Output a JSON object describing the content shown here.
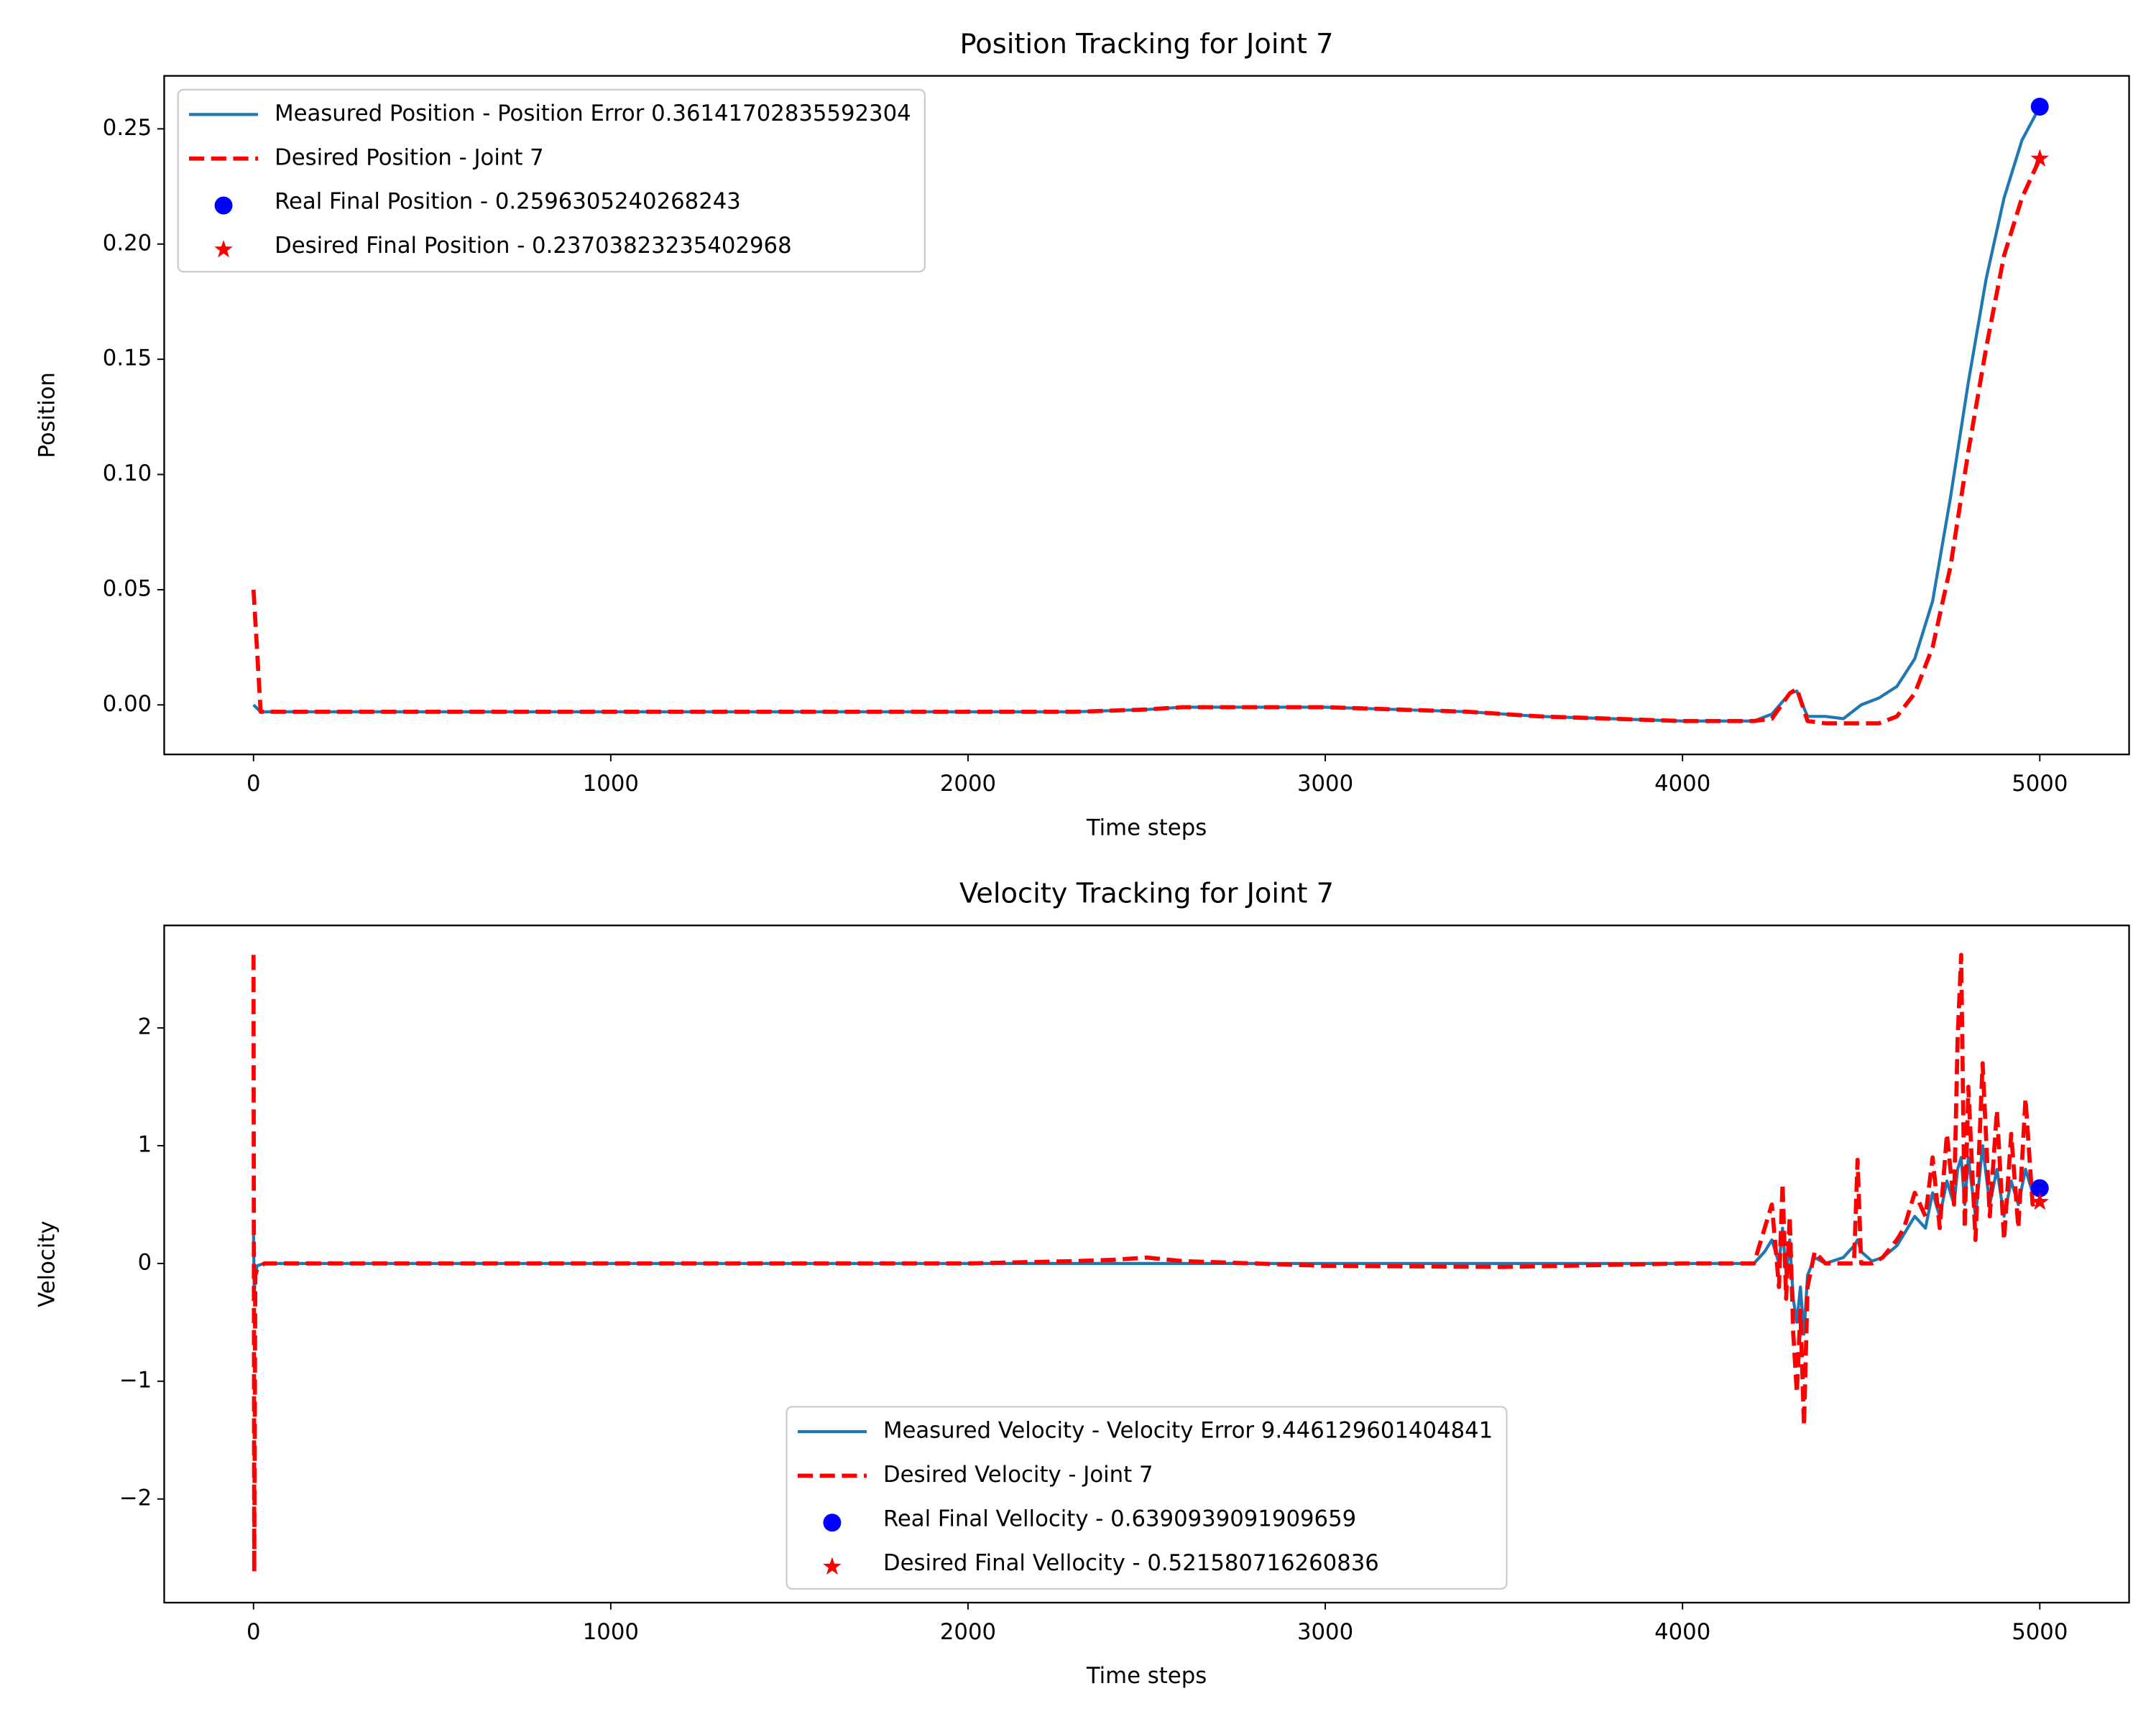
{
  "chart_data": [
    {
      "type": "line",
      "title": "Position Tracking for Joint 7",
      "xlabel": "Time steps",
      "ylabel": "Position",
      "x": [
        0,
        20,
        100,
        500,
        1000,
        1500,
        2000,
        2300,
        2500,
        2600,
        2800,
        3000,
        3200,
        3400,
        3600,
        3800,
        4000,
        4200,
        4250,
        4300,
        4320,
        4350,
        4400,
        4450,
        4500,
        4550,
        4600,
        4650,
        4700,
        4750,
        4800,
        4850,
        4900,
        4950,
        5000
      ],
      "series": [
        {
          "name": "Measured Position - Position Error 0.36141702835592304",
          "color": "#1f77b4",
          "style": "solid",
          "values": [
            0.0,
            -0.003,
            -0.003,
            -0.003,
            -0.003,
            -0.003,
            -0.003,
            -0.003,
            -0.002,
            -0.001,
            -0.001,
            -0.001,
            -0.002,
            -0.003,
            -0.005,
            -0.006,
            -0.007,
            -0.007,
            -0.004,
            0.005,
            0.006,
            -0.005,
            -0.005,
            -0.006,
            0.0,
            0.003,
            0.008,
            0.02,
            0.045,
            0.09,
            0.14,
            0.185,
            0.22,
            0.245,
            0.2596
          ]
        },
        {
          "name": "Desired Position - Joint 7",
          "color": "#ff0000",
          "style": "dashed",
          "values": [
            0.05,
            -0.003,
            -0.003,
            -0.003,
            -0.003,
            -0.003,
            -0.003,
            -0.003,
            -0.002,
            -0.001,
            -0.001,
            -0.001,
            -0.002,
            -0.003,
            -0.005,
            -0.006,
            -0.007,
            -0.007,
            -0.006,
            0.005,
            0.007,
            -0.007,
            -0.008,
            -0.008,
            -0.008,
            -0.008,
            -0.005,
            0.005,
            0.025,
            0.06,
            0.11,
            0.155,
            0.195,
            0.22,
            0.237
          ]
        }
      ],
      "points": [
        {
          "name": "Real Final Position - 0.2596305240268243",
          "color": "#0000ff",
          "marker": "circle",
          "x": 5000,
          "y": 0.2596305240268243
        },
        {
          "name": "Desired Final Position - 0.23703823235402968",
          "color": "#ff0000",
          "marker": "star",
          "x": 5000,
          "y": 0.23703823235402968
        }
      ],
      "legend": "upper left",
      "xlim": [
        -250,
        5250
      ],
      "xticks": [
        0,
        1000,
        2000,
        3000,
        4000,
        5000
      ],
      "ylim": [
        -0.0215,
        0.273
      ],
      "yticks": [
        {
          "value": 0,
          "label": "0.00"
        },
        {
          "value": 0.05,
          "label": "0.05"
        },
        {
          "value": 0.1,
          "label": "0.10"
        },
        {
          "value": 0.15,
          "label": "0.15"
        },
        {
          "value": 0.2,
          "label": "0.20"
        },
        {
          "value": 0.25,
          "label": "0.25"
        }
      ]
    },
    {
      "type": "line",
      "title": "Velocity Tracking for Joint 7",
      "xlabel": "Time steps",
      "ylabel": "Velocity",
      "x": [
        0,
        2,
        5,
        10,
        30,
        100,
        1000,
        2000,
        2300,
        2400,
        2500,
        2600,
        3000,
        3500,
        4000,
        4200,
        4230,
        4250,
        4270,
        4280,
        4290,
        4300,
        4310,
        4320,
        4330,
        4340,
        4350,
        4370,
        4400,
        4450,
        4480,
        4490,
        4500,
        4530,
        4560,
        4600,
        4620,
        4650,
        4680,
        4700,
        4720,
        4740,
        4760,
        4770,
        4780,
        4790,
        4800,
        4820,
        4840,
        4860,
        4880,
        4900,
        4920,
        4940,
        4960,
        4980,
        5000
      ],
      "series": [
        {
          "name": "Measured Velocity - Velocity Error 9.446129601404841",
          "color": "#1f77b4",
          "style": "solid",
          "values": [
            0.25,
            -0.25,
            -0.1,
            -0.02,
            0,
            0,
            0,
            0,
            0,
            0,
            0,
            0,
            0,
            0,
            0,
            0,
            0.1,
            0.2,
            0,
            0.3,
            -0.1,
            0.2,
            -0.3,
            -0.5,
            -0.2,
            -0.6,
            -0.1,
            0.05,
            0,
            0.05,
            0.15,
            0.2,
            0.1,
            0.02,
            0.05,
            0.15,
            0.25,
            0.4,
            0.3,
            0.6,
            0.4,
            0.7,
            0.5,
            0.8,
            0.9,
            0.5,
            0.9,
            0.4,
            1.0,
            0.5,
            0.8,
            0.4,
            0.7,
            0.5,
            0.8,
            0.6,
            0.639
          ]
        },
        {
          "name": "Desired Velocity - Joint 7",
          "color": "#ff0000",
          "style": "dashed",
          "values": [
            2.62,
            -2.62,
            -0.1,
            -0.05,
            0,
            0,
            0,
            0,
            0.02,
            0.03,
            0.05,
            0.02,
            -0.02,
            -0.03,
            0,
            0,
            0.3,
            0.5,
            -0.2,
            0.68,
            -0.3,
            0.4,
            -0.6,
            -1.1,
            -0.4,
            -1.38,
            -0.2,
            0.1,
            0,
            0,
            0,
            0.88,
            0,
            0,
            0.05,
            0.2,
            0.3,
            0.6,
            0.4,
            0.9,
            0.3,
            1.1,
            0.5,
            1.9,
            2.62,
            0.3,
            1.5,
            0.2,
            1.7,
            0.4,
            1.3,
            0.2,
            1.1,
            0.3,
            1.4,
            0.5,
            0.5216
          ]
        }
      ],
      "points": [
        {
          "name": "Real Final Vellocity - 0.6390939091909659",
          "color": "#0000ff",
          "marker": "circle",
          "x": 5000,
          "y": 0.6390939091909659
        },
        {
          "name": "Desired Final Vellocity - 0.521580716260836",
          "color": "#ff0000",
          "marker": "star",
          "x": 5000,
          "y": 0.521580716260836
        }
      ],
      "legend": "lower center",
      "xlim": [
        -250,
        5250
      ],
      "xticks": [
        0,
        1000,
        2000,
        3000,
        4000,
        5000
      ],
      "ylim": [
        -2.88,
        2.87
      ],
      "yticks": [
        {
          "value": -2,
          "label": "−2"
        },
        {
          "value": -1,
          "label": "−1"
        },
        0,
        1,
        2
      ]
    }
  ]
}
